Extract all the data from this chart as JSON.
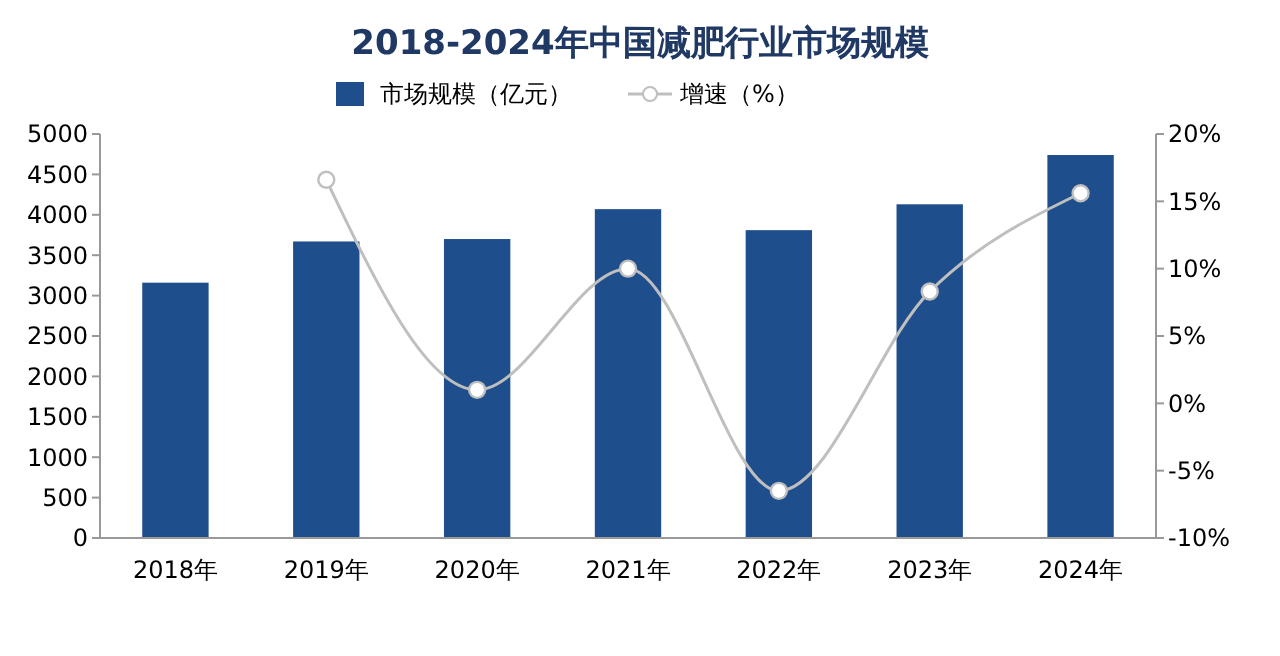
{
  "chart_data": {
    "type": "bar",
    "title": "2018-2024年中国减肥行业市场规模",
    "categories": [
      "2018年",
      "2019年",
      "2020年",
      "2021年",
      "2022年",
      "2023年",
      "2024年"
    ],
    "series": [
      {
        "name": "市场规模（亿元）",
        "color": "#1f4e8c",
        "values": [
          3160,
          3670,
          3700,
          4070,
          3810,
          4130,
          4740
        ]
      },
      {
        "name": "增速（%）",
        "type": "line",
        "axis": "y2",
        "color": "#bfbfbf",
        "values": [
          null,
          16.6,
          1.0,
          10.0,
          -6.5,
          8.3,
          15.6
        ]
      }
    ],
    "ylim": [
      0,
      5000
    ],
    "yticks": [
      0,
      500,
      1000,
      1500,
      2000,
      2500,
      3000,
      3500,
      4000,
      4500,
      5000
    ],
    "y2lim": [
      -10,
      20
    ],
    "y2ticks": [
      {
        "value": -10,
        "label": "-10%"
      },
      {
        "value": -5,
        "label": "-5%"
      },
      {
        "value": 0,
        "label": "0%"
      },
      {
        "value": 5,
        "label": "5%"
      },
      {
        "value": 10,
        "label": "10%"
      },
      {
        "value": 15,
        "label": "15%"
      },
      {
        "value": 20,
        "label": "20%"
      }
    ],
    "marker": "circle",
    "legend": "top",
    "grid": false
  }
}
